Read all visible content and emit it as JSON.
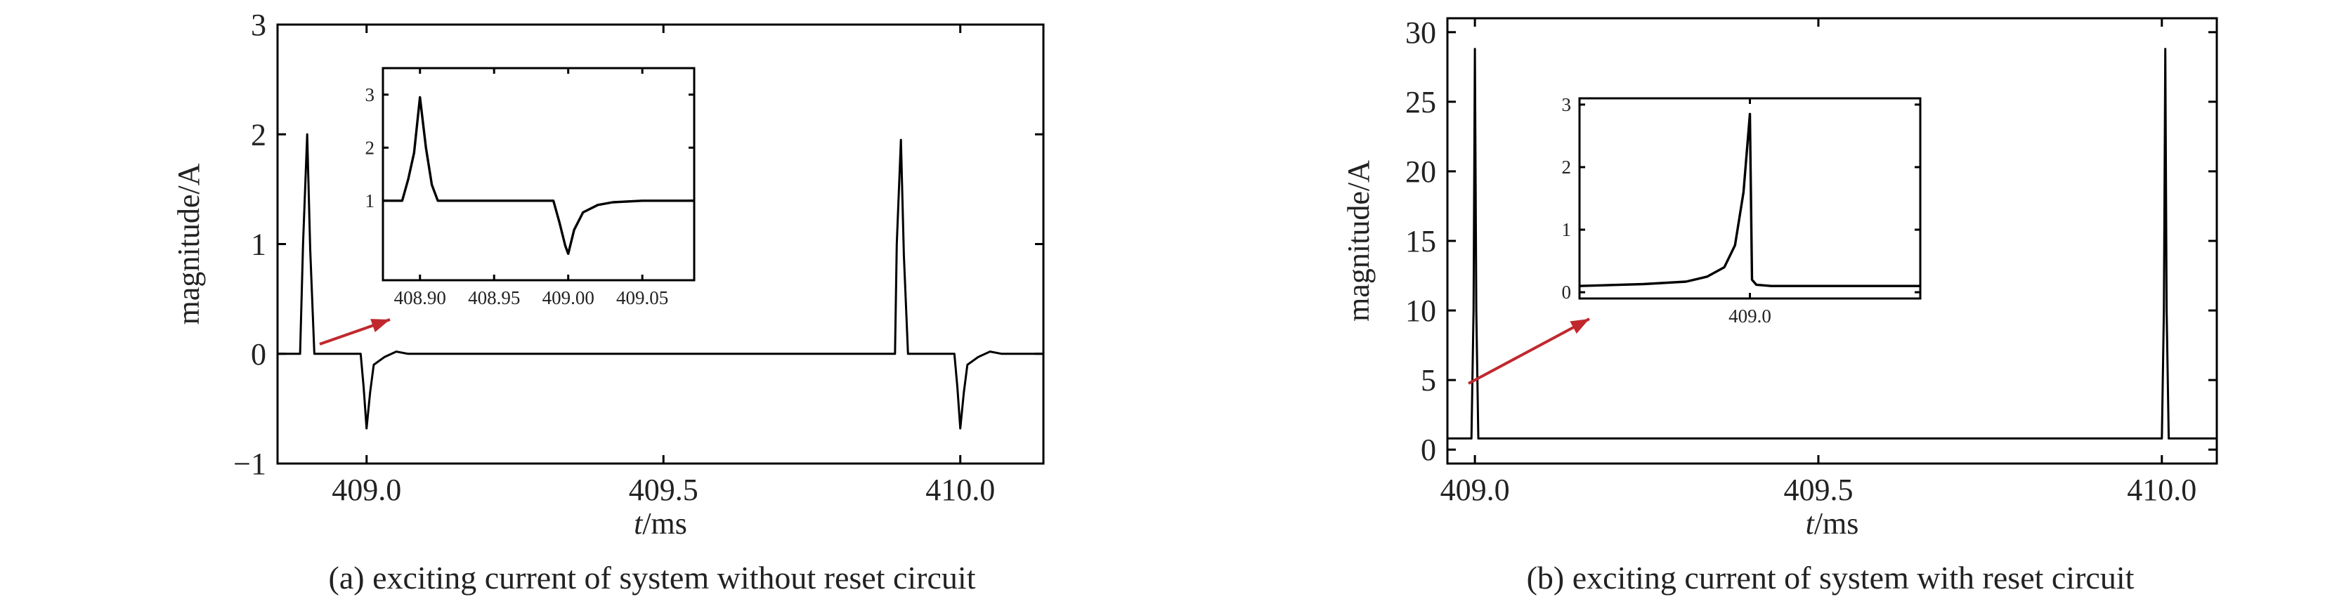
{
  "chart_data": [
    {
      "type": "line",
      "xlabel_italic": "t",
      "xlabel_unit": "/ms",
      "ylabel": "magnitude/A",
      "caption": "(a) exciting current of system without reset circuit",
      "xlim": [
        408.85,
        410.14
      ],
      "ylim": [
        -1,
        3
      ],
      "xticks": [
        409.0,
        409.5,
        410.0
      ],
      "xtick_labels": [
        "409.0",
        "409.5",
        "410.0"
      ],
      "yticks": [
        -1,
        0,
        1,
        2,
        3
      ],
      "ytick_labels": [
        "−1",
        "0",
        "1",
        "2",
        "3"
      ],
      "series": [
        {
          "x": [
            408.85,
            408.888,
            408.893,
            408.9,
            408.905,
            408.912,
            408.99,
            408.995,
            409.0,
            409.006,
            409.012,
            409.03,
            409.05,
            409.07,
            409.1,
            409.89,
            409.893,
            409.9,
            409.905,
            409.912,
            409.99,
            409.995,
            410.0,
            410.006,
            410.012,
            410.03,
            410.05,
            410.07,
            410.14
          ],
          "y": [
            0,
            0,
            1.0,
            2.0,
            0.95,
            0.0,
            0.0,
            -0.3,
            -0.68,
            -0.35,
            -0.1,
            -0.03,
            0.02,
            0.0,
            0.0,
            0.0,
            1.0,
            1.95,
            0.9,
            0.0,
            0.0,
            -0.3,
            -0.68,
            -0.35,
            -0.1,
            -0.03,
            0.02,
            0.0,
            0.0
          ]
        }
      ],
      "inset": {
        "xlim": [
          408.875,
          409.085
        ],
        "ylim": [
          -0.5,
          3.5
        ],
        "xticks": [
          408.9,
          408.95,
          409.0,
          409.05
        ],
        "xtick_labels": [
          "408.90",
          "408.95",
          "409.00",
          "409.05"
        ],
        "yticks": [
          1,
          2,
          3
        ],
        "ytick_labels": [
          "1",
          "2",
          "3"
        ],
        "series": [
          {
            "x": [
              408.875,
              408.888,
              408.892,
              408.896,
              408.9,
              408.904,
              408.908,
              408.912,
              408.99,
              408.994,
              408.998,
              409.0,
              409.004,
              409.01,
              409.02,
              409.03,
              409.05,
              409.085
            ],
            "y": [
              1.0,
              1.0,
              1.4,
              1.9,
              2.95,
              2.0,
              1.3,
              1.0,
              1.0,
              0.6,
              0.15,
              0.0,
              0.45,
              0.78,
              0.92,
              0.97,
              1.0,
              1.0
            ]
          }
        ]
      }
    },
    {
      "type": "line",
      "xlabel_italic": "t",
      "xlabel_unit": "/ms",
      "ylabel": "magnitude/A",
      "caption": "(b) exciting current of system with reset circuit",
      "xlim": [
        408.96,
        410.08
      ],
      "ylim": [
        -1,
        31
      ],
      "xticks": [
        409.0,
        409.5,
        410.0
      ],
      "xtick_labels": [
        "409.0",
        "409.5",
        "410.0"
      ],
      "yticks": [
        0,
        5,
        10,
        15,
        20,
        25,
        30
      ],
      "ytick_labels": [
        "0",
        "5",
        "10",
        "15",
        "20",
        "25",
        "30"
      ],
      "series": [
        {
          "x": [
            408.96,
            408.995,
            408.998,
            409.0,
            409.002,
            409.005,
            410.0,
            410.003,
            410.005,
            410.007,
            410.01,
            410.08
          ],
          "y": [
            0.8,
            0.8,
            10.0,
            28.8,
            10.0,
            0.8,
            0.8,
            10.0,
            28.8,
            10.0,
            0.8,
            0.8
          ]
        }
      ],
      "inset": {
        "xlim": [
          408.92,
          409.08
        ],
        "ylim": [
          -0.1,
          3.1
        ],
        "xticks": [
          409.0
        ],
        "xtick_labels": [
          "409.0"
        ],
        "yticks": [
          0,
          1,
          2,
          3
        ],
        "ytick_labels": [
          "0",
          "1",
          "2",
          "3"
        ],
        "series": [
          {
            "x": [
              408.92,
              408.95,
              408.97,
              408.98,
              408.988,
              408.993,
              408.997,
              409.0,
              409.001,
              409.003,
              409.01,
              409.08
            ],
            "y": [
              0.1,
              0.13,
              0.17,
              0.25,
              0.4,
              0.75,
              1.6,
              2.85,
              0.2,
              0.12,
              0.1,
              0.1
            ]
          }
        ]
      }
    }
  ]
}
